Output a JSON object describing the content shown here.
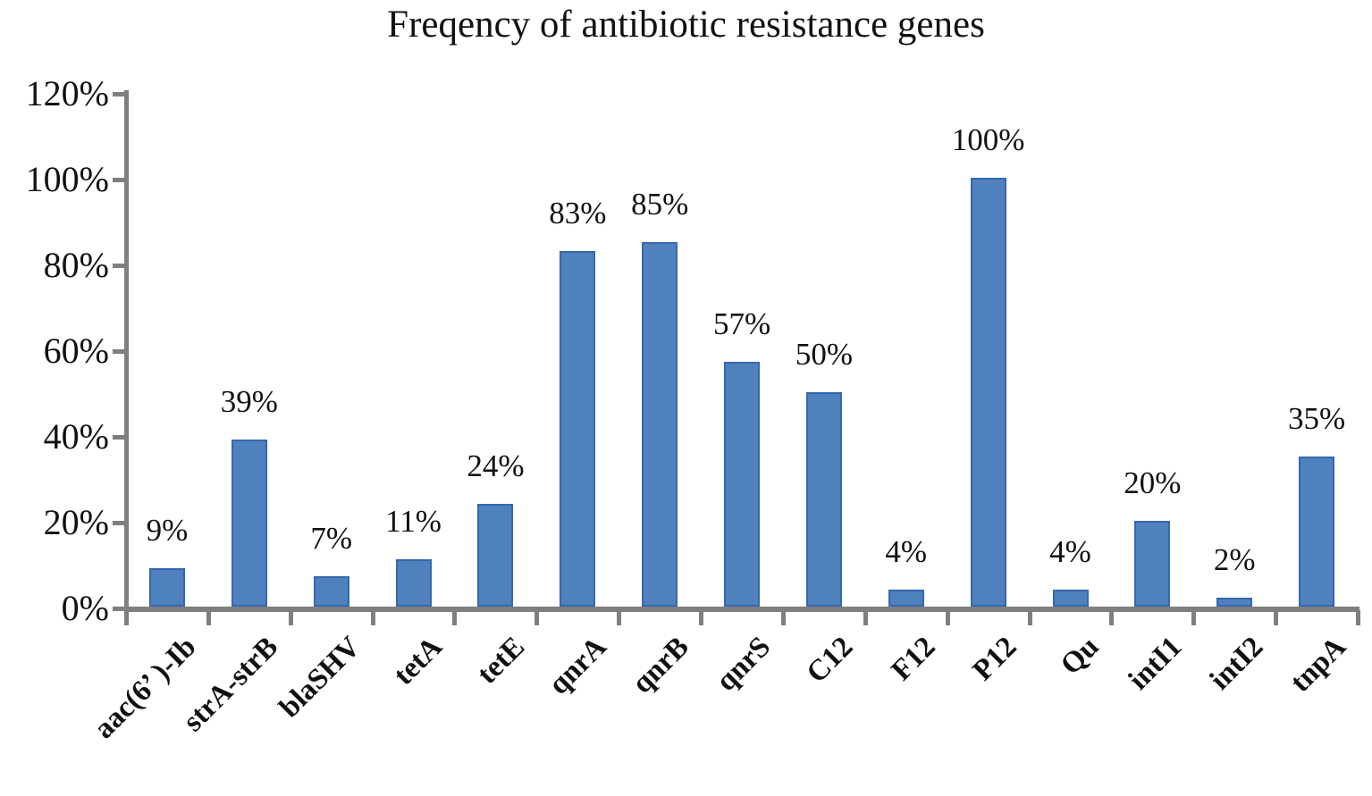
{
  "figure": {
    "title": "Freqency of antibiotic resistance genes"
  },
  "chart_data": {
    "type": "bar",
    "title": "Freqency of antibiotic resistance genes",
    "categories": [
      "aac(6’ )-Ib",
      "strA-strB",
      "blaSHV",
      "tetA",
      "tetE",
      "qnrA",
      "qnrB",
      "qnrS",
      "C12",
      "F12",
      "P12",
      "Qu",
      "intI1",
      "intI2",
      "tnpA"
    ],
    "values": [
      9,
      39,
      7,
      11,
      24,
      83,
      85,
      57,
      50,
      4,
      100,
      4,
      20,
      2,
      35
    ],
    "value_labels": [
      "9%",
      "39%",
      "7%",
      "11%",
      "24%",
      "83%",
      "85%",
      "57%",
      "50%",
      "4%",
      "100%",
      "4%",
      "20%",
      "2%",
      "35%"
    ],
    "xlabel": "",
    "ylabel": "",
    "ylim": [
      0,
      120
    ],
    "y_tick_interval": 20,
    "y_tick_labels": [
      "0%",
      "20%",
      "40%",
      "60%",
      "80%",
      "100%",
      "120%"
    ],
    "grid": false,
    "legend": "none",
    "data_labels": true,
    "x_label_rotation_deg": 45,
    "colors": {
      "bar_fill": "#4F81BD",
      "bar_border": "#3667B0",
      "axis": "#7F7F7F",
      "text": "#111111",
      "background": "#FFFFFF"
    }
  }
}
